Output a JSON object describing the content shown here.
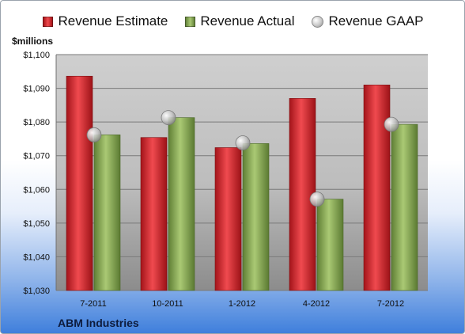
{
  "company": "ABM Industries",
  "colors": {
    "estimate": "#d9262b",
    "actual": "#8cae4f",
    "gaap": "#bdbdbd",
    "plot_top": "#c9c9c9",
    "plot_bottom": "#8e8e8e",
    "gridline": "#7a7a7a"
  },
  "chart_data": {
    "type": "bar",
    "ylabel": "$millions",
    "categories": [
      "7-2011",
      "10-2011",
      "1-2012",
      "4-2012",
      "7-2012"
    ],
    "ylim": [
      1030,
      1100
    ],
    "yticks": [
      1030,
      1040,
      1050,
      1060,
      1070,
      1080,
      1090,
      1100
    ],
    "ytick_labels": [
      "$1,030",
      "$1,040",
      "$1,050",
      "$1,060",
      "$1,070",
      "$1,080",
      "$1,090",
      "$1,100"
    ],
    "grid": true,
    "legend_position": "top",
    "series": [
      {
        "name": "Revenue Estimate",
        "kind": "bar",
        "values": [
          1093.6,
          1075.4,
          1072.4,
          1087.0,
          1091.0
        ]
      },
      {
        "name": "Revenue Actual",
        "kind": "bar",
        "values": [
          1076.2,
          1081.3,
          1073.6,
          1057.1,
          1079.3
        ]
      },
      {
        "name": "Revenue GAAP",
        "kind": "marker",
        "values": [
          1076.2,
          1081.3,
          1073.8,
          1057.1,
          1079.3
        ]
      }
    ]
  }
}
